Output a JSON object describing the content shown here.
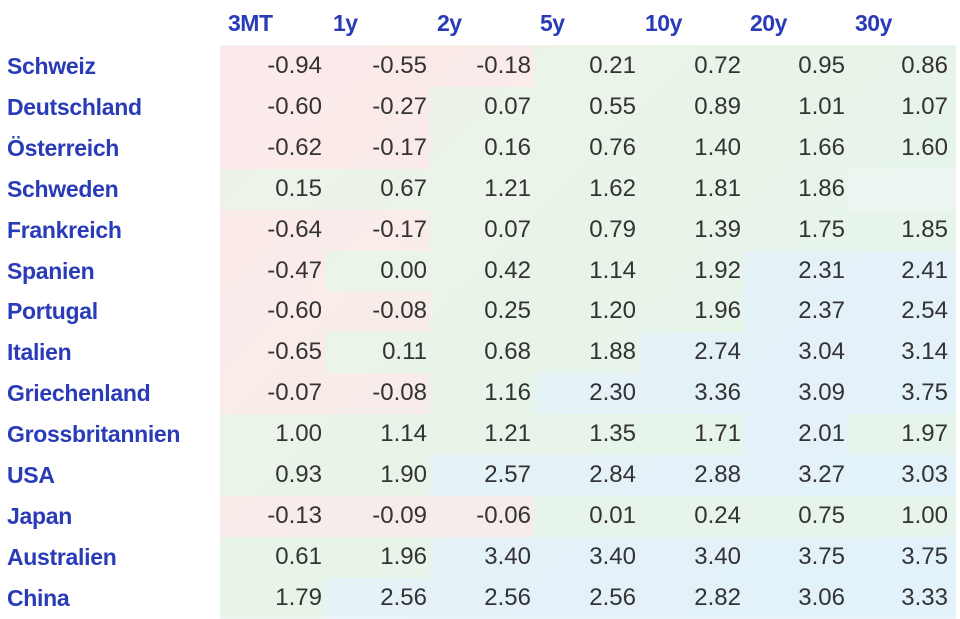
{
  "table": {
    "columns": [
      "3MT",
      "1y",
      "2y",
      "5y",
      "10y",
      "20y",
      "30y"
    ],
    "rows": [
      {
        "label": "Schweiz",
        "cells": [
          "-0.94",
          "-0.55",
          "-0.18",
          "0.21",
          "0.72",
          "0.95",
          "0.86"
        ]
      },
      {
        "label": "Deutschland",
        "cells": [
          "-0.60",
          "-0.27",
          "0.07",
          "0.55",
          "0.89",
          "1.01",
          "1.07"
        ]
      },
      {
        "label": "Österreich",
        "cells": [
          "-0.62",
          "-0.17",
          "0.16",
          "0.76",
          "1.40",
          "1.66",
          "1.60"
        ]
      },
      {
        "label": "Schweden",
        "cells": [
          "0.15",
          "0.67",
          "1.21",
          "1.62",
          "1.81",
          "1.86",
          null
        ]
      },
      {
        "label": "Frankreich",
        "cells": [
          "-0.64",
          "-0.17",
          "0.07",
          "0.79",
          "1.39",
          "1.75",
          "1.85"
        ]
      },
      {
        "label": "Spanien",
        "cells": [
          "-0.47",
          "0.00",
          "0.42",
          "1.14",
          "1.92",
          "2.31",
          "2.41"
        ]
      },
      {
        "label": "Portugal",
        "cells": [
          "-0.60",
          "-0.08",
          "0.25",
          "1.20",
          "1.96",
          "2.37",
          "2.54"
        ]
      },
      {
        "label": "Italien",
        "cells": [
          "-0.65",
          "0.11",
          "0.68",
          "1.88",
          "2.74",
          "3.04",
          "3.14"
        ]
      },
      {
        "label": "Griechenland",
        "cells": [
          "-0.07",
          "-0.08",
          "1.16",
          "2.30",
          "3.36",
          "3.09",
          "3.75"
        ]
      },
      {
        "label": "Grossbritannien",
        "cells": [
          "1.00",
          "1.14",
          "1.21",
          "1.35",
          "1.71",
          "2.01",
          "1.97"
        ]
      },
      {
        "label": "USA",
        "cells": [
          "0.93",
          "1.90",
          "2.57",
          "2.84",
          "2.88",
          "3.27",
          "3.03"
        ]
      },
      {
        "label": "Japan",
        "cells": [
          "-0.13",
          "-0.09",
          "-0.06",
          "0.01",
          "0.24",
          "0.75",
          "1.00"
        ]
      },
      {
        "label": "Australien",
        "cells": [
          "0.61",
          "1.96",
          "3.40",
          "3.40",
          "3.40",
          "3.75",
          "3.75"
        ]
      },
      {
        "label": "China",
        "cells": [
          "1.79",
          "2.56",
          "2.56",
          "2.56",
          "2.82",
          "3.06",
          "3.33"
        ]
      }
    ]
  }
}
